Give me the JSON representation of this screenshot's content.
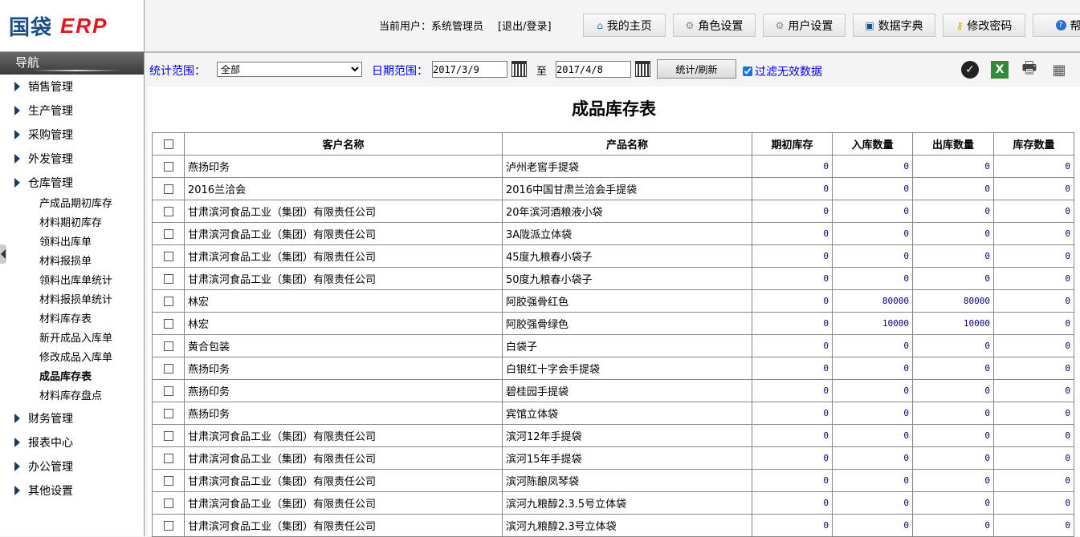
{
  "logo": {
    "cn": "国袋",
    "en": "ERP"
  },
  "nav": {
    "title": "导航",
    "items": [
      {
        "label": "销售管理"
      },
      {
        "label": "生产管理"
      },
      {
        "label": "采购管理"
      },
      {
        "label": "外发管理"
      },
      {
        "label": "仓库管理",
        "children": [
          "产成品期初库存",
          "材料期初库存",
          "领料出库单",
          "材料报损单",
          "领料出库单统计",
          "材料报损单统计",
          "材料库存表",
          "新开成品入库单",
          "修改成品入库单",
          "成品库存表",
          "材料库存盘点"
        ],
        "active_child": "成品库存表"
      },
      {
        "label": "财务管理"
      },
      {
        "label": "报表中心"
      },
      {
        "label": "办公管理"
      },
      {
        "label": "其他设置"
      }
    ]
  },
  "header": {
    "current_user": "当前用户：系统管理员",
    "logout": "[退出/登录]",
    "buttons": [
      {
        "label": "我的主页",
        "icon": "home-icon"
      },
      {
        "label": "角色设置",
        "icon": "gear-icon"
      },
      {
        "label": "用户设置",
        "icon": "gear-icon"
      },
      {
        "label": "数据字典",
        "icon": "book-icon"
      },
      {
        "label": "修改密码",
        "icon": "key-icon"
      },
      {
        "label": "帮助",
        "icon": "help-icon"
      }
    ]
  },
  "toolbar": {
    "scope_label": "统计范围：",
    "scope_value": "全部",
    "date_label": "日期范围：",
    "date_from": "2017/3/9",
    "to": "至",
    "date_to": "2017/4/8",
    "refresh": "统计/刷新",
    "filter_label": "过滤无效数据",
    "filter_checked": true
  },
  "report": {
    "title": "成品库存表",
    "columns": [
      "客户名称",
      "产品名称",
      "期初库存",
      "入库数量",
      "出库数量",
      "库存数量"
    ],
    "rows": [
      [
        "燕扬印务",
        "泸州老窖手提袋",
        "0",
        "0",
        "0",
        "0"
      ],
      [
        "2016兰洽会",
        "2016中国甘肃兰洽会手提袋",
        "0",
        "0",
        "0",
        "0"
      ],
      [
        "甘肃滨河食品工业（集团）有限责任公司",
        "20年滨河酒粮液小袋",
        "0",
        "0",
        "0",
        "0"
      ],
      [
        "甘肃滨河食品工业（集团）有限责任公司",
        "3A陇派立体袋",
        "0",
        "0",
        "0",
        "0"
      ],
      [
        "甘肃滨河食品工业（集团）有限责任公司",
        "45度九粮春小袋子",
        "0",
        "0",
        "0",
        "0"
      ],
      [
        "甘肃滨河食品工业（集团）有限责任公司",
        "50度九粮春小袋子",
        "0",
        "0",
        "0",
        "0"
      ],
      [
        "林宏",
        "阿胶强骨红色",
        "0",
        "80000",
        "80000",
        "0"
      ],
      [
        "林宏",
        "阿胶强骨绿色",
        "0",
        "10000",
        "10000",
        "0"
      ],
      [
        "黄合包装",
        "白袋子",
        "0",
        "0",
        "0",
        "0"
      ],
      [
        "燕扬印务",
        "白银红十字会手提袋",
        "0",
        "0",
        "0",
        "0"
      ],
      [
        "燕扬印务",
        "碧桂园手提袋",
        "0",
        "0",
        "0",
        "0"
      ],
      [
        "燕扬印务",
        "宾馆立体袋",
        "0",
        "0",
        "0",
        "0"
      ],
      [
        "甘肃滨河食品工业（集团）有限责任公司",
        "滨河12年手提袋",
        "0",
        "0",
        "0",
        "0"
      ],
      [
        "甘肃滨河食品工业（集团）有限责任公司",
        "滨河15年手提袋",
        "0",
        "0",
        "0",
        "0"
      ],
      [
        "甘肃滨河食品工业（集团）有限责任公司",
        "滨河陈酿凤琴袋",
        "0",
        "0",
        "0",
        "0"
      ],
      [
        "甘肃滨河食品工业（集团）有限责任公司",
        "滨河九粮醇2.3.5号立体袋",
        "0",
        "0",
        "0",
        "0"
      ],
      [
        "甘肃滨河食品工业（集团）有限责任公司",
        "滨河九粮醇2.3号立体袋",
        "0",
        "0",
        "0",
        "0"
      ]
    ]
  }
}
